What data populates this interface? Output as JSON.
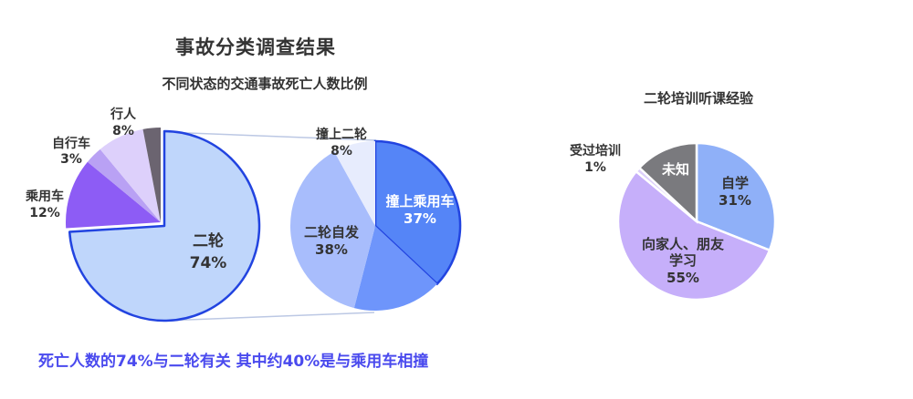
{
  "header": {
    "title": "事故分类调查结果",
    "subtitle": "不同状态的交通事故死亡人数比例"
  },
  "caption": "死亡人数的74%与二轮有关 其中约40%是与乘用车相撞",
  "colors": {
    "two_wheel": "#bfd6fb",
    "passenger_car": "#8d5cf5",
    "bicycle": "#b9a1f4",
    "pedestrian": "#ddd0fb",
    "other": "#6b6470",
    "collision_car": "#5585f7",
    "self_crash": "#a8bdfc",
    "collision_two_wheel": "#e7ecfd",
    "unlabeled_blue": "#6e95fb",
    "self_study": "#8fb0f8",
    "friends": "#c6affa",
    "unknown": "#7a7a7e",
    "highlight_border": "#2244e0",
    "caption_text": "#4a4aee"
  },
  "chart_data": [
    {
      "type": "pie",
      "title": "不同状态的交通事故死亡人数比例",
      "slices": [
        {
          "label": "二轮",
          "pct_text": "74%",
          "value": 74
        },
        {
          "label": "乘用车",
          "pct_text": "12%",
          "value": 12
        },
        {
          "label": "自行车",
          "pct_text": "3%",
          "value": 3
        },
        {
          "label": "行人",
          "pct_text": "8%",
          "value": 8
        },
        {
          "label": "",
          "pct_text": "",
          "value": 3
        }
      ]
    },
    {
      "type": "pie",
      "title": "",
      "slices": [
        {
          "label": "撞上乘用车",
          "pct_text": "37%",
          "value": 37
        },
        {
          "label": "",
          "pct_text": "",
          "value": 17
        },
        {
          "label": "二轮自发",
          "pct_text": "38%",
          "value": 38
        },
        {
          "label": "撞上二轮",
          "pct_text": "8%",
          "value": 8
        }
      ]
    },
    {
      "type": "pie",
      "title": "二轮培训听课经验",
      "slices": [
        {
          "label": "自学",
          "pct_text": "31%",
          "value": 31
        },
        {
          "label": "向家人、朋友学习",
          "pct_text": "55%",
          "value": 55
        },
        {
          "label": "受过培训",
          "pct_text": "1%",
          "value": 1
        },
        {
          "label": "未知",
          "pct_text": "",
          "value": 13
        }
      ]
    }
  ]
}
